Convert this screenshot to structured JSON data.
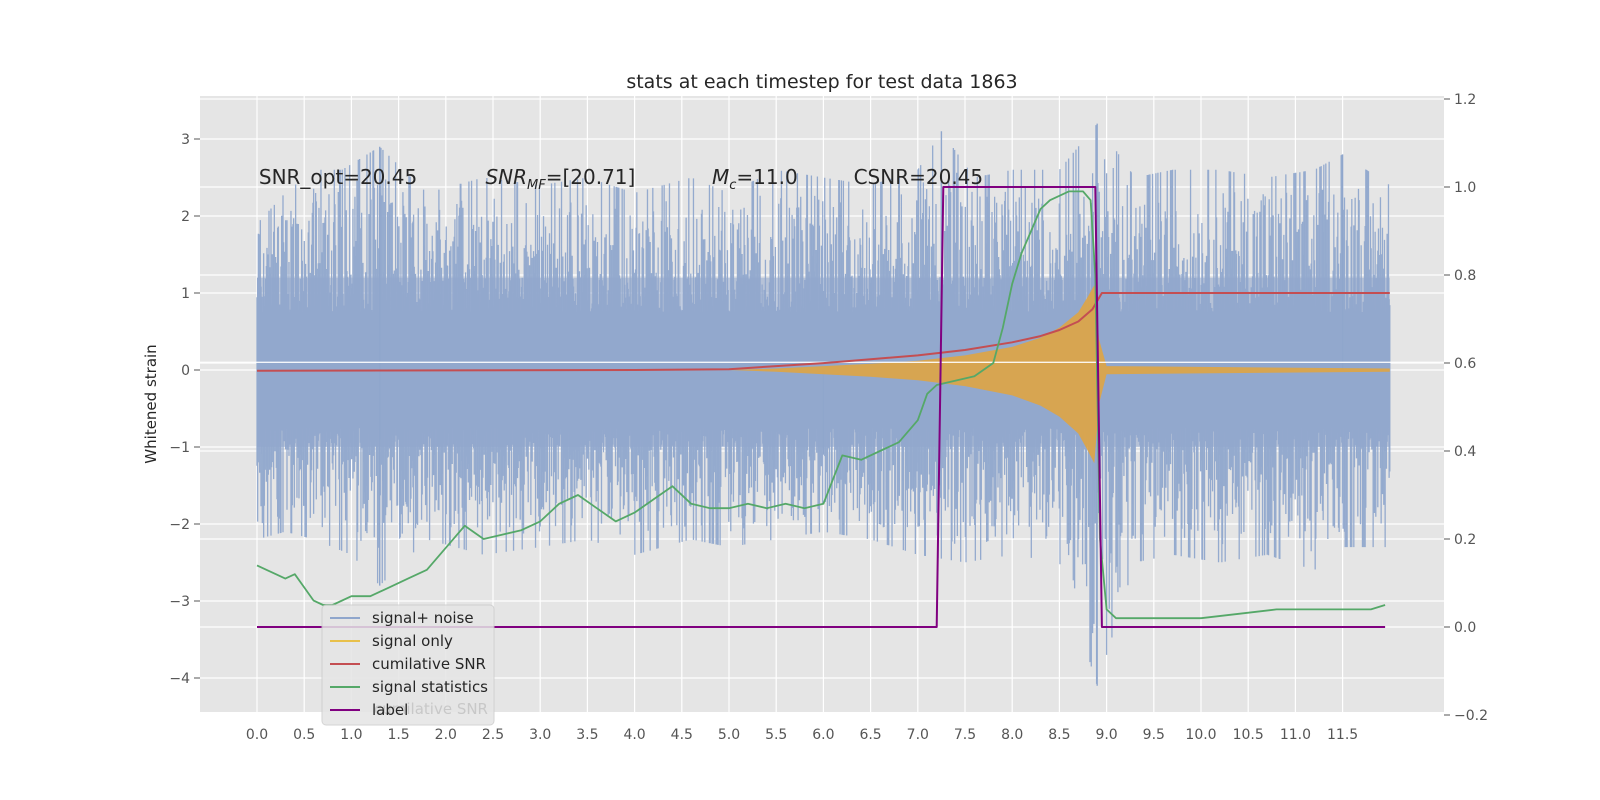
{
  "chart_data": {
    "type": "line",
    "title": "stats at each timestep for test data 1863",
    "ylabel": "Whitened strain",
    "xlabel": "",
    "xlim": [
      -0.5,
      12.4
    ],
    "ylim": [
      -4.45,
      3.55
    ],
    "y2lim": [
      -0.2,
      1.2
    ],
    "grid": true,
    "background": "#e5e5e5",
    "x_ticks": [
      0.0,
      0.5,
      1.0,
      1.5,
      2.0,
      2.5,
      3.0,
      3.5,
      4.0,
      4.5,
      5.0,
      5.5,
      6.0,
      6.5,
      7.0,
      7.5,
      8.0,
      8.5,
      9.0,
      9.5,
      10.0,
      10.5,
      11.0,
      11.5
    ],
    "x_tick_labels": [
      "0.0",
      "0.5",
      "1.0",
      "1.5",
      "2.0",
      "2.5",
      "3.0",
      "3.5",
      "4.0",
      "4.5",
      "5.0",
      "5.5",
      "6.0",
      "6.5",
      "7.0",
      "7.5",
      "8.0",
      "8.5",
      "9.0",
      "9.5",
      "10.0",
      "10.5",
      "11.0",
      "11.5"
    ],
    "y_ticks": [
      -4,
      -3,
      -2,
      -1,
      0,
      1,
      2,
      3
    ],
    "y_tick_labels": [
      "−4",
      "−3",
      "−2",
      "−1",
      "0",
      "1",
      "2",
      "3"
    ],
    "y2_ticks": [
      -0.2,
      0.0,
      0.2,
      0.4,
      0.6,
      0.8,
      1.0,
      1.2
    ],
    "y2_tick_labels": [
      "−0.2",
      "0.0",
      "0.2",
      "0.4",
      "0.6",
      "0.8",
      "1.0",
      "1.2"
    ],
    "annotations": [
      {
        "id": "snr-opt",
        "text": "SNR_opt=20.45",
        "x": 0.2,
        "y": 2.5
      },
      {
        "id": "snr-mf",
        "text": "SNR_MF=[20.71]",
        "x": 2.6,
        "y": 2.5
      },
      {
        "id": "mc",
        "text": "M_c=11.0",
        "x": 5.0,
        "y": 2.5
      },
      {
        "id": "csnr",
        "text": "CSNR=20.45",
        "x": 6.5,
        "y": 2.5
      }
    ],
    "legend": {
      "placement": "lower-left",
      "entries": [
        {
          "label": "signal+ noise",
          "color": "#8fa6cc"
        },
        {
          "label": "signal only",
          "color": "#e8c04a"
        },
        {
          "label": "cumilative SNR",
          "color": "#c44e52"
        },
        {
          "label": "signal statistics",
          "color": "#55a868"
        },
        {
          "label": "label",
          "color": "#800080"
        }
      ],
      "ghost_text": "cumilative SNR"
    },
    "series": [
      {
        "name": "signal+ noise",
        "axis": "left",
        "color": "#8fa6cc",
        "x_range": [
          0.0,
          12.0
        ],
        "upper_envelope": [
          [
            0.0,
            1.9
          ],
          [
            0.3,
            2.3
          ],
          [
            0.6,
            2.6
          ],
          [
            0.9,
            2.6
          ],
          [
            1.3,
            2.9
          ],
          [
            1.8,
            2.3
          ],
          [
            2.4,
            2.5
          ],
          [
            3.0,
            2.4
          ],
          [
            3.5,
            2.5
          ],
          [
            4.0,
            2.3
          ],
          [
            4.6,
            2.5
          ],
          [
            5.0,
            2.3
          ],
          [
            5.5,
            2.6
          ],
          [
            6.0,
            2.5
          ],
          [
            6.5,
            2.4
          ],
          [
            7.0,
            2.6
          ],
          [
            7.25,
            3.1
          ],
          [
            7.6,
            2.5
          ],
          [
            8.0,
            2.6
          ],
          [
            8.5,
            2.6
          ],
          [
            8.9,
            3.2
          ],
          [
            9.3,
            2.5
          ],
          [
            9.7,
            2.6
          ],
          [
            10.2,
            2.6
          ],
          [
            10.7,
            2.5
          ],
          [
            11.2,
            2.6
          ],
          [
            11.5,
            2.8
          ],
          [
            12.0,
            2.4
          ]
        ],
        "lower_envelope": [
          [
            0.0,
            -2.2
          ],
          [
            0.3,
            -2.1
          ],
          [
            0.6,
            -2.2
          ],
          [
            1.0,
            -2.4
          ],
          [
            1.3,
            -2.8
          ],
          [
            1.8,
            -2.2
          ],
          [
            2.4,
            -2.4
          ],
          [
            3.0,
            -2.3
          ],
          [
            3.5,
            -2.2
          ],
          [
            4.0,
            -2.4
          ],
          [
            4.6,
            -2.2
          ],
          [
            5.0,
            -2.3
          ],
          [
            5.5,
            -2.2
          ],
          [
            6.0,
            -2.1
          ],
          [
            6.5,
            -2.2
          ],
          [
            7.0,
            -2.4
          ],
          [
            7.5,
            -2.5
          ],
          [
            8.0,
            -2.4
          ],
          [
            8.5,
            -2.5
          ],
          [
            8.9,
            -4.1
          ],
          [
            9.3,
            -2.5
          ],
          [
            9.7,
            -2.4
          ],
          [
            10.2,
            -2.5
          ],
          [
            10.7,
            -2.4
          ],
          [
            11.2,
            -2.6
          ],
          [
            11.5,
            -2.3
          ],
          [
            12.0,
            -2.3
          ]
        ]
      },
      {
        "name": "signal only",
        "axis": "left",
        "color": "#dfa444",
        "envelope": [
          [
            5.0,
            0.0
          ],
          [
            5.5,
            0.02
          ],
          [
            6.0,
            0.05
          ],
          [
            6.5,
            0.08
          ],
          [
            7.0,
            0.12
          ],
          [
            7.5,
            0.19
          ],
          [
            8.0,
            0.3
          ],
          [
            8.3,
            0.42
          ],
          [
            8.5,
            0.55
          ],
          [
            8.7,
            0.75
          ],
          [
            8.8,
            0.95
          ],
          [
            8.87,
            1.1
          ],
          [
            8.92,
            0.4
          ],
          [
            9.0,
            0.05
          ],
          [
            12.0,
            0.02
          ]
        ]
      },
      {
        "name": "cumilative SNR",
        "axis": "left",
        "color": "#c44e52",
        "points": [
          [
            0.0,
            -0.01
          ],
          [
            2.0,
            -0.005
          ],
          [
            4.0,
            0.0
          ],
          [
            5.0,
            0.01
          ],
          [
            5.5,
            0.05
          ],
          [
            6.0,
            0.09
          ],
          [
            6.5,
            0.14
          ],
          [
            7.0,
            0.19
          ],
          [
            7.5,
            0.26
          ],
          [
            8.0,
            0.36
          ],
          [
            8.3,
            0.44
          ],
          [
            8.5,
            0.52
          ],
          [
            8.7,
            0.63
          ],
          [
            8.85,
            0.79
          ],
          [
            8.95,
            1.0
          ],
          [
            12.0,
            1.0
          ]
        ]
      },
      {
        "name": "signal statistics",
        "axis": "right",
        "color": "#55a868",
        "points": [
          [
            0.0,
            0.14
          ],
          [
            0.1,
            0.13
          ],
          [
            0.2,
            0.12
          ],
          [
            0.3,
            0.11
          ],
          [
            0.4,
            0.12
          ],
          [
            0.5,
            0.09
          ],
          [
            0.6,
            0.06
          ],
          [
            0.7,
            0.05
          ],
          [
            0.8,
            0.05
          ],
          [
            1.0,
            0.07
          ],
          [
            1.2,
            0.07
          ],
          [
            1.4,
            0.09
          ],
          [
            1.6,
            0.11
          ],
          [
            1.8,
            0.13
          ],
          [
            2.0,
            0.18
          ],
          [
            2.2,
            0.23
          ],
          [
            2.4,
            0.2
          ],
          [
            2.6,
            0.21
          ],
          [
            2.8,
            0.22
          ],
          [
            3.0,
            0.24
          ],
          [
            3.2,
            0.28
          ],
          [
            3.4,
            0.3
          ],
          [
            3.6,
            0.27
          ],
          [
            3.8,
            0.24
          ],
          [
            4.0,
            0.26
          ],
          [
            4.2,
            0.29
          ],
          [
            4.4,
            0.32
          ],
          [
            4.6,
            0.28
          ],
          [
            4.8,
            0.27
          ],
          [
            5.0,
            0.27
          ],
          [
            5.2,
            0.28
          ],
          [
            5.4,
            0.27
          ],
          [
            5.6,
            0.28
          ],
          [
            5.8,
            0.27
          ],
          [
            6.0,
            0.28
          ],
          [
            6.2,
            0.39
          ],
          [
            6.4,
            0.38
          ],
          [
            6.6,
            0.4
          ],
          [
            6.8,
            0.42
          ],
          [
            7.0,
            0.47
          ],
          [
            7.1,
            0.53
          ],
          [
            7.2,
            0.55
          ],
          [
            7.4,
            0.56
          ],
          [
            7.6,
            0.57
          ],
          [
            7.8,
            0.6
          ],
          [
            7.9,
            0.68
          ],
          [
            8.0,
            0.78
          ],
          [
            8.1,
            0.85
          ],
          [
            8.2,
            0.9
          ],
          [
            8.3,
            0.95
          ],
          [
            8.4,
            0.97
          ],
          [
            8.5,
            0.98
          ],
          [
            8.6,
            0.99
          ],
          [
            8.75,
            0.99
          ],
          [
            8.83,
            0.97
          ],
          [
            8.88,
            0.8
          ],
          [
            8.93,
            0.2
          ],
          [
            9.0,
            0.04
          ],
          [
            9.1,
            0.02
          ],
          [
            9.3,
            0.02
          ],
          [
            9.6,
            0.02
          ],
          [
            10.0,
            0.02
          ],
          [
            10.4,
            0.03
          ],
          [
            10.8,
            0.04
          ],
          [
            11.2,
            0.04
          ],
          [
            11.5,
            0.04
          ],
          [
            11.8,
            0.04
          ],
          [
            11.95,
            0.05
          ]
        ]
      },
      {
        "name": "label",
        "axis": "right",
        "color": "#800080",
        "points": [
          [
            0.0,
            0.0
          ],
          [
            7.2,
            0.0
          ],
          [
            7.27,
            1.0
          ],
          [
            8.88,
            1.0
          ],
          [
            8.95,
            0.0
          ],
          [
            11.95,
            0.0
          ]
        ]
      }
    ]
  }
}
